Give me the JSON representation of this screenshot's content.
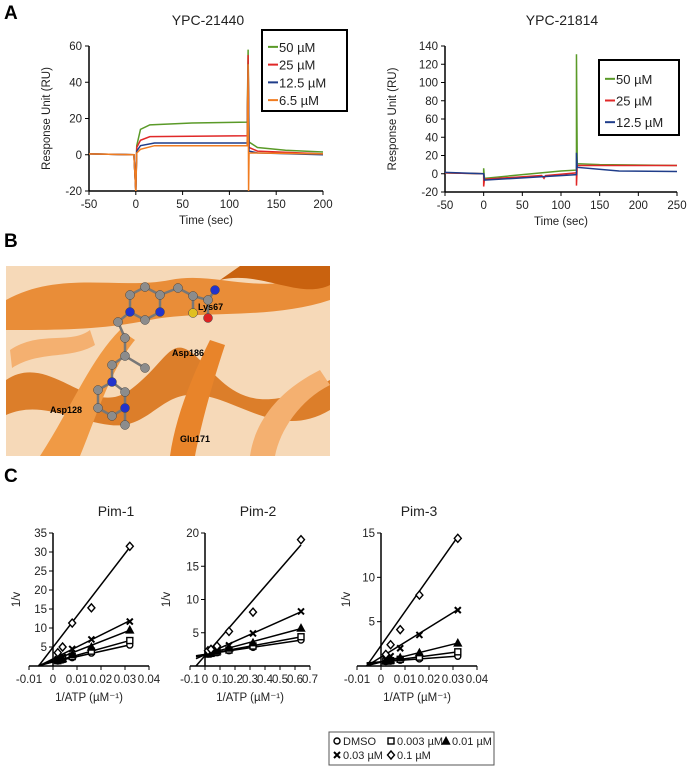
{
  "panel_labels": {
    "a": "A",
    "b": "B",
    "c": "C"
  },
  "structure_panel": {
    "residue_labels": [
      "Lys67",
      "Asp186",
      "Asp128",
      "Glu171"
    ],
    "colors": {
      "ribbon": "#e8842a",
      "ribbon_light": "#f4b070",
      "carbon": "#8c8c8c",
      "nitrogen": "#2233cc",
      "oxygen": "#dd2222",
      "sulfur": "#e0c020"
    }
  },
  "chart_data": [
    {
      "type": "line",
      "title": "YPC-21440",
      "xlabel": "Time (sec)",
      "ylabel": "Response Unit (RU)",
      "xlim": [
        -50,
        200
      ],
      "ylim": [
        -20,
        60
      ],
      "xticks": [
        "-50",
        "0",
        "50",
        "100",
        "150",
        "200"
      ],
      "yticks": [
        "-20",
        "0",
        "20",
        "40",
        "60"
      ],
      "legend": "top-right",
      "grid": false,
      "series": [
        {
          "name": "50 µM",
          "color": "#5a9a28",
          "points": [
            [
              -50,
              0.5
            ],
            [
              -2,
              0
            ],
            [
              0,
              -20
            ],
            [
              1,
              5
            ],
            [
              5,
              14
            ],
            [
              15,
              16.5
            ],
            [
              60,
              17.5
            ],
            [
              119,
              18
            ],
            [
              120,
              58
            ],
            [
              121,
              7
            ],
            [
              130,
              4
            ],
            [
              160,
              2.5
            ],
            [
              200,
              1.5
            ]
          ]
        },
        {
          "name": "25 µM",
          "color": "#e02828",
          "points": [
            [
              -50,
              0.5
            ],
            [
              -2,
              0
            ],
            [
              0,
              -20
            ],
            [
              1,
              4
            ],
            [
              5,
              8
            ],
            [
              15,
              10
            ],
            [
              119,
              10.5
            ],
            [
              120,
              55
            ],
            [
              121,
              4
            ],
            [
              130,
              2
            ],
            [
              200,
              0.5
            ]
          ]
        },
        {
          "name": "12.5 µM",
          "color": "#1f3d8a",
          "points": [
            [
              -50,
              0.5
            ],
            [
              -2,
              0
            ],
            [
              0,
              -20
            ],
            [
              1,
              2
            ],
            [
              5,
              5
            ],
            [
              20,
              6.5
            ],
            [
              119,
              6.5
            ],
            [
              120,
              50
            ],
            [
              121,
              2
            ],
            [
              130,
              1
            ],
            [
              200,
              0
            ]
          ]
        },
        {
          "name": "6.5 µM",
          "color": "#f07c20",
          "points": [
            [
              -50,
              0.5
            ],
            [
              -2,
              0
            ],
            [
              0,
              -20
            ],
            [
              1,
              1
            ],
            [
              5,
              3
            ],
            [
              20,
              5
            ],
            [
              119,
              5
            ],
            [
              120,
              50
            ],
            [
              120.5,
              -20
            ],
            [
              121,
              1
            ],
            [
              130,
              1
            ],
            [
              200,
              0.5
            ]
          ]
        }
      ]
    },
    {
      "type": "line",
      "title": "YPC-21814",
      "xlabel": "Time (sec)",
      "ylabel": "Response Unit (RU)",
      "xlim": [
        -50,
        250
      ],
      "ylim": [
        -20,
        140
      ],
      "xticks": [
        "-50",
        "0",
        "50",
        "100",
        "150",
        "200",
        "250"
      ],
      "yticks": [
        "-20",
        "0",
        "20",
        "40",
        "60",
        "80",
        "100",
        "120",
        "140"
      ],
      "legend": "top-right",
      "grid": false,
      "series": [
        {
          "name": "50 µM",
          "color": "#5a9a28",
          "points": [
            [
              -50,
              1
            ],
            [
              0,
              0
            ],
            [
              0,
              6
            ],
            [
              1,
              -5
            ],
            [
              50,
              -1
            ],
            [
              100,
              3
            ],
            [
              120,
              4
            ],
            [
              120,
              131
            ],
            [
              121,
              11
            ],
            [
              150,
              10
            ],
            [
              250,
              9
            ]
          ]
        },
        {
          "name": "25 µM",
          "color": "#e02828",
          "points": [
            [
              -50,
              1
            ],
            [
              0,
              0
            ],
            [
              0,
              -14
            ],
            [
              1,
              -6
            ],
            [
              75,
              -2
            ],
            [
              78,
              -5
            ],
            [
              80,
              -2
            ],
            [
              120,
              1
            ],
            [
              120,
              -13
            ],
            [
              121,
              9
            ],
            [
              250,
              9
            ]
          ]
        },
        {
          "name": "12.5 µM",
          "color": "#1f3d8a",
          "points": [
            [
              -50,
              1.5
            ],
            [
              0,
              0
            ],
            [
              1,
              -7
            ],
            [
              120,
              -1
            ],
            [
              120,
              23
            ],
            [
              121,
              7
            ],
            [
              175,
              3
            ],
            [
              250,
              2.5
            ]
          ]
        }
      ]
    },
    {
      "type": "scatter",
      "title": "Pim-1",
      "xlabel": "1/ATP (µM⁻¹)",
      "ylabel": "1/v",
      "xlim": [
        -0.01,
        0.04
      ],
      "ylim": [
        0,
        35
      ],
      "xticks": [
        "-0.01",
        "0",
        "0.01",
        "0.02",
        "0.03",
        "0.04"
      ],
      "yticks": [
        "5",
        "10",
        "15",
        "20",
        "25",
        "30",
        "35"
      ],
      "x": [
        0.002,
        0.004,
        0.008,
        0.016,
        0.032
      ],
      "series": [
        {
          "name": "DMSO",
          "marker": "circle",
          "values": [
            1.3,
            1.6,
            2.2,
            3.4,
            5.5
          ]
        },
        {
          "name": "0.003 µM",
          "marker": "square",
          "values": [
            1.4,
            1.8,
            2.5,
            3.9,
            6.7
          ]
        },
        {
          "name": "0.01 µM",
          "marker": "triangle",
          "values": [
            1.6,
            2.0,
            3.0,
            5.0,
            9.5
          ]
        },
        {
          "name": "0.03 µM",
          "marker": "cross",
          "values": [
            1.8,
            2.4,
            4.5,
            7.0,
            11.7
          ]
        },
        {
          "name": "0.1 µM",
          "marker": "diamond",
          "values": [
            3.5,
            5.0,
            11.3,
            15.3,
            31.5
          ]
        }
      ]
    },
    {
      "type": "scatter",
      "title": "Pim-2",
      "xlabel": "1/ATP (µM⁻¹)",
      "ylabel": "1/v",
      "xlim": [
        -0.1,
        0.7
      ],
      "ylim": [
        0,
        20
      ],
      "xticks": [
        "-0.1",
        "0",
        "0.1",
        "0.2",
        "0.3",
        "0.4",
        "0.5",
        "0.6",
        "0.7"
      ],
      "yticks": [
        "5",
        "10",
        "15",
        "20"
      ],
      "x": [
        0.02,
        0.04,
        0.08,
        0.16,
        0.32,
        0.64
      ],
      "series": [
        {
          "name": "DMSO",
          "marker": "circle",
          "values": [
            1.8,
            1.9,
            2.0,
            2.3,
            2.8,
            3.9
          ]
        },
        {
          "name": "0.003 µM",
          "marker": "square",
          "values": [
            1.8,
            1.9,
            2.1,
            2.4,
            3.0,
            4.4
          ]
        },
        {
          "name": "0.01 µM",
          "marker": "triangle",
          "values": [
            1.9,
            2.0,
            2.3,
            2.7,
            3.5,
            5.7
          ]
        },
        {
          "name": "0.03 µM",
          "marker": "cross",
          "values": [
            2.0,
            2.2,
            2.5,
            3.1,
            4.9,
            8.2
          ]
        },
        {
          "name": "0.1 µM",
          "marker": "diamond",
          "values": [
            2.3,
            2.5,
            3.0,
            5.2,
            8.1,
            19.0
          ]
        }
      ]
    },
    {
      "type": "scatter",
      "title": "Pim-3",
      "xlabel": "1/ATP (µM⁻¹)",
      "ylabel": "1/v",
      "xlim": [
        -0.01,
        0.04
      ],
      "ylim": [
        0,
        15
      ],
      "xticks": [
        "-0.01",
        "0",
        "0.01",
        "0.02",
        "0.03",
        "0.04"
      ],
      "yticks": [
        "5",
        "10",
        "15"
      ],
      "x": [
        0.002,
        0.004,
        0.008,
        0.016,
        0.032
      ],
      "series": [
        {
          "name": "DMSO",
          "marker": "circle",
          "values": [
            0.5,
            0.55,
            0.65,
            0.8,
            1.1
          ]
        },
        {
          "name": "0.003 µM",
          "marker": "square",
          "values": [
            0.55,
            0.6,
            0.75,
            1.0,
            1.6
          ]
        },
        {
          "name": "0.01 µM",
          "marker": "triangle",
          "values": [
            0.6,
            0.7,
            0.95,
            1.5,
            2.6
          ]
        },
        {
          "name": "0.03 µM",
          "marker": "cross",
          "values": [
            0.8,
            1.1,
            2.0,
            3.5,
            6.3
          ]
        },
        {
          "name": "0.1 µM",
          "marker": "diamond",
          "values": [
            1.3,
            2.4,
            4.1,
            8.0,
            14.4
          ]
        }
      ]
    }
  ],
  "kinetics_legend": [
    "DMSO",
    "0.003 µM",
    "0.01 µM",
    "0.03 µM",
    "0.1 µM"
  ]
}
